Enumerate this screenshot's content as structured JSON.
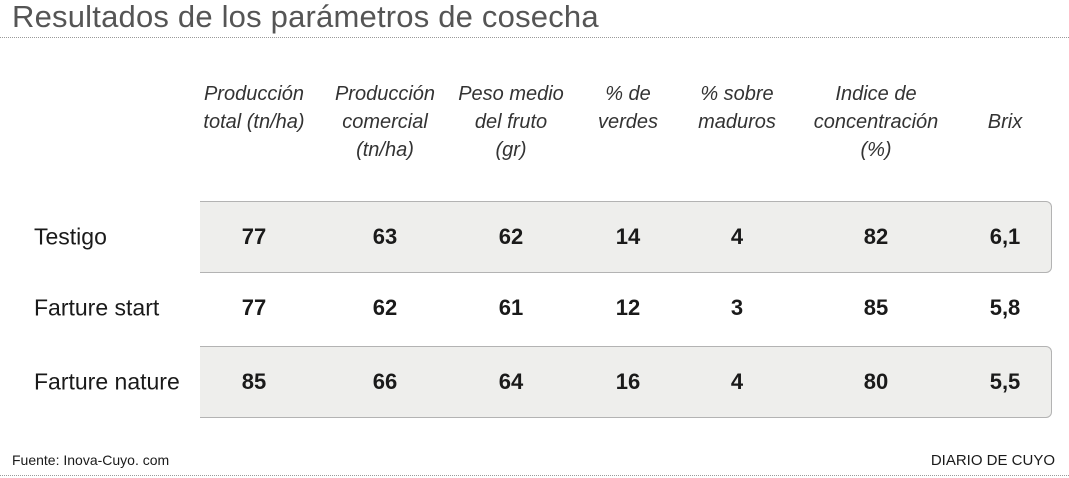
{
  "title": "Resultados de los parámetros de cosecha",
  "source": "Fuente: Inova-Cuyo. com",
  "brand": "DIARIO DE CUYO",
  "chart_data": {
    "type": "table",
    "columns": [
      {
        "lines": [
          "Producción",
          "total (tn/ha)"
        ]
      },
      {
        "lines": [
          "Producción",
          "comercial",
          "(tn/ha)"
        ]
      },
      {
        "lines": [
          "Peso medio",
          "del fruto",
          "(gr)"
        ]
      },
      {
        "lines": [
          "% de",
          "verdes"
        ]
      },
      {
        "lines": [
          "% sobre",
          "maduros"
        ]
      },
      {
        "lines": [
          "Indice de",
          "concentración",
          "(%)"
        ]
      },
      {
        "lines": [
          "Brix"
        ]
      }
    ],
    "rows": [
      {
        "label": "Testigo",
        "values": [
          "77",
          "63",
          "62",
          "14",
          "4",
          "82",
          "6,1"
        ],
        "shaded": true
      },
      {
        "label": "Farture start",
        "values": [
          "77",
          "62",
          "61",
          "12",
          "3",
          "85",
          "5,8"
        ],
        "shaded": false
      },
      {
        "label": "Farture nature",
        "values": [
          "85",
          "66",
          "64",
          "16",
          "4",
          "80",
          "5,5"
        ],
        "shaded": true
      }
    ]
  }
}
